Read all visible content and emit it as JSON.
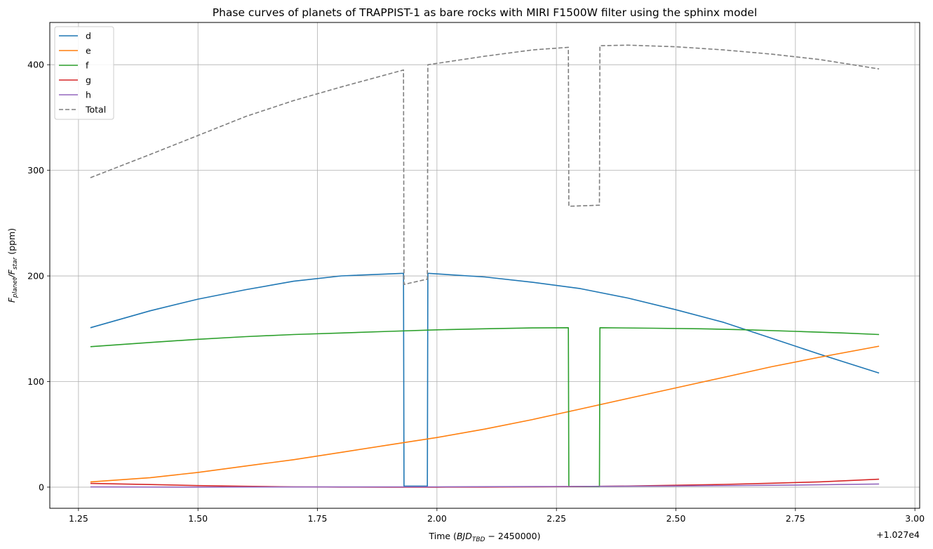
{
  "chart_data": {
    "type": "line",
    "title": "Phase curves of planets of TRAPPIST-1 as bare rocks with MIRI F1500W filter using the sphinx model",
    "xlabel_main": "Time (",
    "xlabel_math": "BJD",
    "xlabel_sub": "TBD",
    "xlabel_tail": " − 2450000)",
    "ylabel_prefix": "F",
    "ylabel_sub1": "planet",
    "ylabel_mid": "/F",
    "ylabel_sub2": "star",
    "ylabel_suffix": " (ppm)",
    "x_offset_label": "+1.027e4",
    "xlim": [
      1.19,
      3.01
    ],
    "ylim": [
      -20,
      440
    ],
    "x_ticks": [
      1.25,
      1.5,
      1.75,
      2.0,
      2.25,
      2.5,
      2.75,
      3.0
    ],
    "x_tick_labels": [
      "1.25",
      "1.50",
      "1.75",
      "2.00",
      "2.25",
      "2.50",
      "2.75",
      "3.00"
    ],
    "y_ticks": [
      0,
      100,
      200,
      300,
      400
    ],
    "y_tick_labels": [
      "0",
      "100",
      "200",
      "300",
      "400"
    ],
    "grid": true,
    "legend_position": "upper-left",
    "series": [
      {
        "name": "d",
        "color": "#1f77b4",
        "dash": "solid",
        "points": [
          [
            1.275,
            151
          ],
          [
            1.4,
            167
          ],
          [
            1.5,
            178
          ],
          [
            1.6,
            187
          ],
          [
            1.7,
            195
          ],
          [
            1.8,
            200
          ],
          [
            1.93,
            202.5
          ],
          [
            1.931,
            1
          ],
          [
            1.98,
            1
          ],
          [
            1.981,
            202.5
          ],
          [
            2.1,
            199
          ],
          [
            2.2,
            194
          ],
          [
            2.3,
            188
          ],
          [
            2.4,
            179
          ],
          [
            2.5,
            168
          ],
          [
            2.6,
            156
          ],
          [
            2.7,
            141
          ],
          [
            2.8,
            126
          ],
          [
            2.925,
            108
          ]
        ]
      },
      {
        "name": "e",
        "color": "#ff7f0e",
        "dash": "solid",
        "points": [
          [
            1.275,
            5
          ],
          [
            1.4,
            9
          ],
          [
            1.5,
            14
          ],
          [
            1.6,
            20
          ],
          [
            1.7,
            26
          ],
          [
            1.8,
            33
          ],
          [
            1.9,
            40
          ],
          [
            2.0,
            47
          ],
          [
            2.1,
            55
          ],
          [
            2.2,
            64
          ],
          [
            2.3,
            74
          ],
          [
            2.4,
            84
          ],
          [
            2.5,
            94
          ],
          [
            2.6,
            104
          ],
          [
            2.7,
            114
          ],
          [
            2.8,
            123
          ],
          [
            2.925,
            133.5
          ]
        ]
      },
      {
        "name": "f",
        "color": "#2ca02c",
        "dash": "solid",
        "points": [
          [
            1.275,
            133
          ],
          [
            1.4,
            137
          ],
          [
            1.5,
            140
          ],
          [
            1.6,
            142.5
          ],
          [
            1.7,
            144.5
          ],
          [
            1.8,
            146
          ],
          [
            1.9,
            147.5
          ],
          [
            2.0,
            149
          ],
          [
            2.1,
            150
          ],
          [
            2.2,
            150.8
          ],
          [
            2.275,
            151
          ],
          [
            2.276,
            0.5
          ],
          [
            2.34,
            0.5
          ],
          [
            2.341,
            151
          ],
          [
            2.45,
            150.5
          ],
          [
            2.55,
            150
          ],
          [
            2.65,
            149
          ],
          [
            2.75,
            147.5
          ],
          [
            2.85,
            146
          ],
          [
            2.925,
            144.5
          ]
        ]
      },
      {
        "name": "g",
        "color": "#d62728",
        "dash": "solid",
        "points": [
          [
            1.275,
            3.5
          ],
          [
            1.4,
            2.5
          ],
          [
            1.5,
            1.5
          ],
          [
            1.6,
            0.8
          ],
          [
            1.7,
            0.3
          ],
          [
            1.8,
            0.1
          ],
          [
            1.9,
            0
          ],
          [
            2.0,
            0
          ],
          [
            2.1,
            0.1
          ],
          [
            2.2,
            0.3
          ],
          [
            2.3,
            0.6
          ],
          [
            2.4,
            1.1
          ],
          [
            2.5,
            1.8
          ],
          [
            2.6,
            2.6
          ],
          [
            2.7,
            3.7
          ],
          [
            2.8,
            5
          ],
          [
            2.925,
            7.5
          ]
        ]
      },
      {
        "name": "h",
        "color": "#9467bd",
        "dash": "solid",
        "points": [
          [
            1.275,
            0.2
          ],
          [
            1.5,
            0.1
          ],
          [
            1.75,
            0.2
          ],
          [
            2.0,
            0.3
          ],
          [
            2.25,
            0.6
          ],
          [
            2.5,
            1.1
          ],
          [
            2.75,
            2
          ],
          [
            2.925,
            3
          ]
        ]
      },
      {
        "name": "Total",
        "color": "#7f7f7f",
        "dash": "dashed",
        "points": [
          [
            1.275,
            293
          ],
          [
            1.4,
            315
          ],
          [
            1.5,
            333
          ],
          [
            1.6,
            351
          ],
          [
            1.7,
            366
          ],
          [
            1.8,
            379
          ],
          [
            1.93,
            395
          ],
          [
            1.931,
            192
          ],
          [
            1.98,
            197
          ],
          [
            1.981,
            400
          ],
          [
            2.1,
            408
          ],
          [
            2.2,
            414
          ],
          [
            2.275,
            416.5
          ],
          [
            2.276,
            266
          ],
          [
            2.34,
            267
          ],
          [
            2.341,
            418
          ],
          [
            2.4,
            418.5
          ],
          [
            2.5,
            417
          ],
          [
            2.6,
            414
          ],
          [
            2.7,
            410
          ],
          [
            2.8,
            405
          ],
          [
            2.925,
            396
          ]
        ]
      }
    ]
  }
}
